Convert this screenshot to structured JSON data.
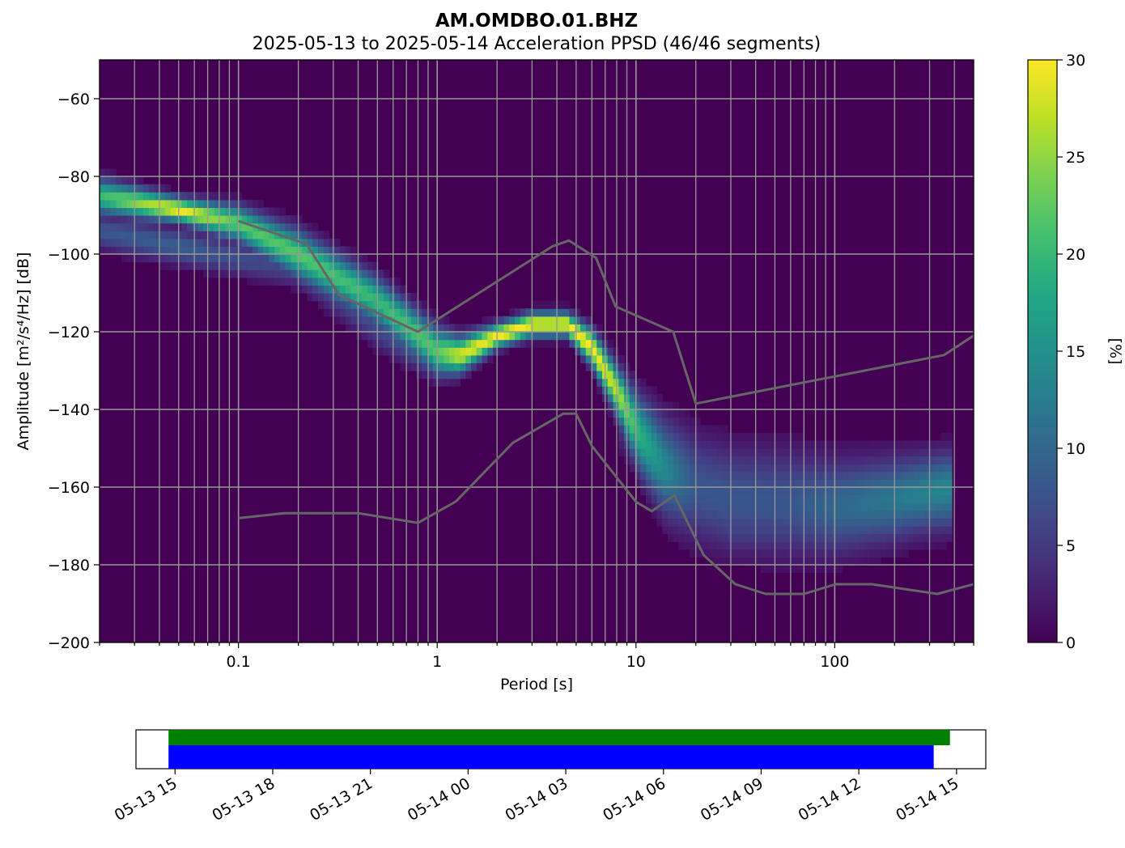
{
  "chart_data": {
    "type": "heatmap",
    "title": "AM.OMDBO.01.BHZ",
    "subtitle": "2025-05-13 to 2025-05-14  Acceleration PPSD (46/46 segments)",
    "xlabel": "Period [s]",
    "ylabel": "Amplitude [m²/s⁴/Hz] [dB]",
    "xscale": "log",
    "xlim": [
      0.02,
      500
    ],
    "ylim": [
      -200,
      -50
    ],
    "grid": true,
    "x_ticks": [
      {
        "value": 0.1,
        "label": "0.1"
      },
      {
        "value": 1,
        "label": "1"
      },
      {
        "value": 10,
        "label": "10"
      },
      {
        "value": 100,
        "label": "100"
      }
    ],
    "y_ticks": [
      {
        "value": -60,
        "label": "−60"
      },
      {
        "value": -80,
        "label": "−80"
      },
      {
        "value": -100,
        "label": "−100"
      },
      {
        "value": -120,
        "label": "−120"
      },
      {
        "value": -140,
        "label": "−140"
      },
      {
        "value": -160,
        "label": "−160"
      },
      {
        "value": -180,
        "label": "−180"
      },
      {
        "value": -200,
        "label": "−200"
      }
    ],
    "colorbar": {
      "label": "[%]",
      "range": [
        0,
        30
      ],
      "colormap": "viridis",
      "ticks": [
        {
          "value": 0,
          "label": "0"
        },
        {
          "value": 5,
          "label": "5"
        },
        {
          "value": 10,
          "label": "10"
        },
        {
          "value": 15,
          "label": "15"
        },
        {
          "value": 20,
          "label": "20"
        },
        {
          "value": 25,
          "label": "25"
        },
        {
          "value": 30,
          "label": "30"
        }
      ]
    },
    "density_bands": [
      {
        "periods": [
          0.02,
          0.05,
          0.1,
          0.2,
          0.5,
          1.0,
          1.3,
          2.0,
          3.0,
          4.5,
          6.0,
          8.0,
          10,
          14,
          20,
          30,
          60,
          100,
          200,
          400
        ],
        "mode_db": [
          -85,
          -88.5,
          -92,
          -100,
          -112,
          -125,
          -126,
          -121,
          -118,
          -118,
          -124,
          -135,
          -145,
          -155,
          -160,
          -163,
          -164,
          -165,
          -163,
          -160
        ],
        "peak_pct": [
          20,
          30,
          22,
          22,
          20,
          22,
          28,
          30,
          30,
          30,
          30,
          27,
          20,
          14,
          8,
          8,
          8,
          10,
          12,
          14
        ],
        "spread_db": [
          3,
          2,
          3,
          4,
          4,
          4,
          3,
          2,
          2,
          2,
          3,
          4,
          6,
          8,
          9,
          9,
          9,
          8,
          7,
          6
        ]
      },
      {
        "periods": [
          0.02,
          0.05,
          0.1,
          0.2,
          0.5,
          1.0,
          1.3
        ],
        "mode_db": [
          -94,
          -98,
          -101,
          -104,
          -118,
          -128,
          -127
        ],
        "peak_pct": [
          8,
          9,
          7,
          6,
          7,
          10,
          14
        ],
        "spread_db": [
          3,
          3,
          3,
          3,
          4,
          3,
          3
        ]
      },
      {
        "periods": [
          8,
          15,
          30,
          60,
          100,
          200,
          400
        ],
        "mode_db": [
          -140,
          -155,
          -170,
          -170,
          -168,
          -166,
          -162
        ],
        "peak_pct": [
          6,
          6,
          6,
          6,
          7,
          9,
          12
        ],
        "spread_db": [
          6,
          6,
          5,
          5,
          5,
          5,
          6
        ]
      }
    ],
    "reference_curves": [
      {
        "x": [
          0.1,
          0.22,
          0.32,
          0.8,
          3.8,
          4.6,
          6.3,
          7.9,
          15.4,
          20,
          354.8,
          500
        ],
        "y": [
          -91.5,
          -97.4,
          -110.5,
          -120,
          -98,
          -96.5,
          -101,
          -113.5,
          -120,
          -138.5,
          -126,
          -121
        ]
      },
      {
        "x": [
          0.1,
          0.17,
          0.4,
          0.8,
          1.24,
          2.4,
          4.3,
          5.0,
          6.0,
          10,
          12,
          15.6,
          21.9,
          31.6,
          45,
          70,
          101,
          154,
          328,
          500
        ],
        "y": [
          -168,
          -166.7,
          -166.7,
          -169.2,
          -163.7,
          -148.6,
          -141.1,
          -141.1,
          -149.4,
          -163.8,
          -166.2,
          -162.1,
          -177.5,
          -185,
          -187.5,
          -187.5,
          -185,
          -185,
          -187.5,
          -185
        ]
      }
    ],
    "coverage": {
      "time_ticks": [
        {
          "label": "05-13 15"
        },
        {
          "label": "05-13 18"
        },
        {
          "label": "05-13 21"
        },
        {
          "label": "05-14 00"
        },
        {
          "label": "05-14 03"
        },
        {
          "label": "05-14 06"
        },
        {
          "label": "05-14 09"
        },
        {
          "label": "05-14 12"
        },
        {
          "label": "05-14 15"
        }
      ],
      "time_range_hours": [
        -1.2,
        24.9
      ],
      "green_span_hours": [
        -0.2,
        23.8
      ],
      "blue_span_hours": [
        -0.2,
        23.3
      ],
      "colors": {
        "green": "#008000",
        "blue": "#0000ff"
      }
    }
  }
}
